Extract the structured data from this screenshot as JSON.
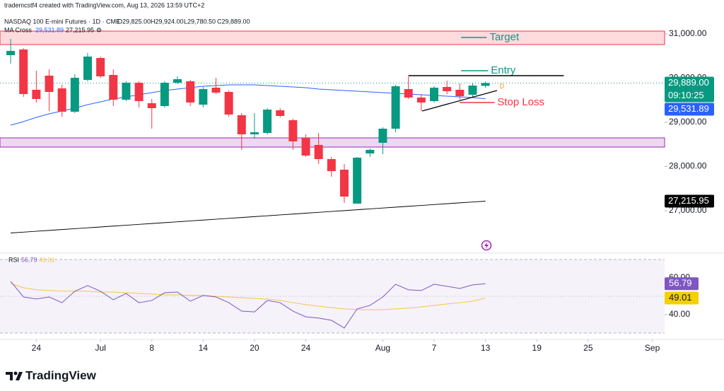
{
  "header": {
    "credit": "trademcstf4 created with TradingView.com, Aug 13, 2026 13:59 UTC+2",
    "symbol": "NASDAQ 100 E-mini Futures · 1D · CME",
    "ohlc": [
      "O29,825.00",
      "H29,924.00",
      "L29,780.50",
      "C29,889.00"
    ],
    "ma_legend": [
      "MA Cross",
      "29,531.89",
      "27,215.95"
    ],
    "rsi_legend": [
      "RSI",
      "56.79",
      "49.01"
    ]
  },
  "footer": {
    "brand": "TradingView"
  },
  "chart_data": [
    {
      "type": "candlestick",
      "xlim": [
        -0.83,
        50.96
      ],
      "xticks": [
        {
          "value": 2,
          "label": "24"
        },
        {
          "value": 7,
          "label": "Jul"
        },
        {
          "value": 11,
          "label": "8"
        },
        {
          "value": 15,
          "label": "14"
        },
        {
          "value": 19,
          "label": "20"
        },
        {
          "value": 23,
          "label": "24"
        },
        {
          "value": 29,
          "label": "Aug"
        },
        {
          "value": 33,
          "label": "7"
        },
        {
          "value": 37,
          "label": "13"
        },
        {
          "value": 41,
          "label": "19"
        },
        {
          "value": 45,
          "label": "25"
        },
        {
          "value": 50,
          "label": "Sep"
        }
      ],
      "ylim": [
        26088,
        31160
      ],
      "yticks": [
        {
          "value": 27000,
          "label": "27,000.00"
        },
        {
          "value": 28000,
          "label": "28,000.00"
        },
        {
          "value": 29000,
          "label": "29,000.00"
        },
        {
          "value": 30000,
          "label": "30,000.00"
        },
        {
          "value": 31000,
          "label": "31,000.00"
        }
      ],
      "up_color": "#089981",
      "down_color": "#f23645",
      "open": [
        30520,
        30648,
        29736,
        30056,
        29768,
        29240,
        29960,
        30456,
        30072,
        29512,
        29896,
        29432,
        29368,
        29896,
        29928,
        29400,
        29784,
        29688,
        29160,
        28728,
        28760,
        29272,
        29048,
        28648,
        28488,
        28168,
        27928,
        27160,
        28296,
        28536,
        28856,
        29752,
        29560,
        29480,
        29800,
        29736,
        29624,
        29825
      ],
      "high": [
        30888,
        30680,
        30168,
        30200,
        29848,
        30088,
        30568,
        30488,
        30200,
        29928,
        29928,
        29528,
        29928,
        30040,
        29960,
        29800,
        30008,
        29720,
        29208,
        29208,
        29320,
        29320,
        29080,
        28728,
        28760,
        28216,
        28056,
        28216,
        28408,
        28888,
        29848,
        30040,
        29640,
        29816,
        29944,
        29880,
        29896,
        29924
      ],
      "low": [
        30328,
        29576,
        29448,
        29256,
        29128,
        29208,
        29928,
        30008,
        29368,
        29480,
        29336,
        28856,
        29336,
        29864,
        29368,
        29336,
        29640,
        29128,
        28376,
        28632,
        28728,
        29112,
        28376,
        28216,
        28056,
        27768,
        27176,
        27160,
        28216,
        28280,
        28776,
        29528,
        29256,
        29448,
        29640,
        29512,
        29576,
        29780.5
      ],
      "close": [
        30616,
        29640,
        29528,
        29688,
        29240,
        30008,
        30488,
        30040,
        29512,
        29896,
        29480,
        29320,
        29896,
        29976,
        29448,
        29752,
        29672,
        29176,
        28728,
        28776,
        29288,
        29144,
        28568,
        28248,
        28168,
        27896,
        27320,
        28200,
        28376,
        28856,
        29816,
        29560,
        29448,
        29784,
        29704,
        29592,
        29832,
        29889
      ],
      "series": [
        {
          "name": "MA fast",
          "color": "#2962ff",
          "values": [
            28936,
            29016,
            29112,
            29192,
            29256,
            29320,
            29400,
            29464,
            29528,
            29576,
            29624,
            29672,
            29720,
            29752,
            29784,
            29816,
            29832,
            29848,
            29848,
            29848,
            29832,
            29816,
            29800,
            29784,
            29752,
            29736,
            29720,
            29704,
            29688,
            29672,
            29656,
            29640,
            29624,
            29608,
            29592,
            29576,
            29560,
            29531.89
          ]
        },
        {
          "name": "MA slow",
          "color": "#000000",
          "values": [
            26496,
            26515,
            26535,
            26554,
            26574,
            26593,
            26613,
            26632,
            26652,
            26671,
            26691,
            26710,
            26730,
            26749,
            26769,
            26788,
            26807,
            26827,
            26846,
            26866,
            26885,
            26905,
            26924,
            26944,
            26963,
            26983,
            27002,
            27022,
            27041,
            27061,
            27080,
            27100,
            27119,
            27139,
            27158,
            27178,
            27197,
            27215.95
          ]
        }
      ],
      "zones": [
        {
          "ylim": [
            30760,
            31064
          ],
          "color": "#f23645"
        },
        {
          "ylim": [
            28440,
            28648
          ],
          "color": "#9c27b0"
        }
      ],
      "levels": [
        {
          "label": "Target",
          "value": 30920,
          "x": [
            35.1,
            37.1
          ],
          "color": "#089981"
        },
        {
          "label": "Entry",
          "value": 30168,
          "x": [
            35.1,
            37.2
          ],
          "color": "#089981"
        },
        {
          "label": "Stop Loss",
          "value": 29448,
          "x": [
            35.0,
            37.7
          ],
          "color": "#f23645"
        },
        {
          "value": 30056,
          "x": [
            31.0,
            43.1
          ],
          "color": "#000000"
        }
      ],
      "trendline": {
        "x": [
          32.07,
          37.9
        ],
        "values": [
          29256,
          29720
        ],
        "color": "#000000"
      },
      "price_labels": [
        {
          "value": 29889,
          "label": "29,889.00",
          "sub": "09:10:25",
          "color": "#089981"
        },
        {
          "value": 29531.89,
          "label": "29,531.89",
          "color": "#2962ff"
        },
        {
          "value": 27215.95,
          "label": "27,215.95",
          "color": "#000000"
        }
      ]
    },
    {
      "type": "line",
      "ylim": [
        27.3,
        71.9
      ],
      "yticks": [
        {
          "value": 40,
          "label": "40.00"
        },
        {
          "value": 60,
          "label": "60.00"
        }
      ],
      "band": [
        30,
        70
      ],
      "series": [
        {
          "name": "RSI",
          "color": "#7e57c2",
          "values": [
            58.1,
            49.6,
            48.5,
            49.6,
            46.5,
            52.7,
            55.8,
            52.7,
            48.1,
            51.5,
            46.5,
            47.7,
            51.9,
            52.3,
            47.3,
            50.4,
            49.6,
            46.5,
            41.9,
            41.5,
            47.7,
            46.5,
            41.9,
            38.8,
            38.1,
            36.9,
            32.7,
            43.1,
            45.0,
            49.6,
            56.5,
            53.5,
            53.1,
            56.5,
            55.4,
            54.2,
            56.2,
            56.79
          ]
        },
        {
          "name": "RSI MA",
          "color": "#f5c542",
          "values": [
            56.9,
            54.6,
            53.5,
            53.1,
            52.7,
            52.7,
            52.7,
            52.3,
            52.3,
            51.9,
            51.5,
            51.2,
            50.8,
            50.8,
            50.4,
            50.4,
            50.0,
            49.6,
            49.2,
            48.8,
            48.5,
            47.7,
            46.5,
            45.4,
            44.6,
            43.8,
            43.1,
            42.7,
            42.7,
            42.7,
            43.1,
            43.5,
            44.2,
            45.0,
            45.8,
            46.5,
            47.3,
            49.01
          ]
        }
      ],
      "value_labels": [
        {
          "value": 56.79,
          "label": "56.79",
          "color": "#7e57c2"
        },
        {
          "value": 49.01,
          "label": "49.01",
          "color": "#f5d000"
        }
      ]
    }
  ]
}
